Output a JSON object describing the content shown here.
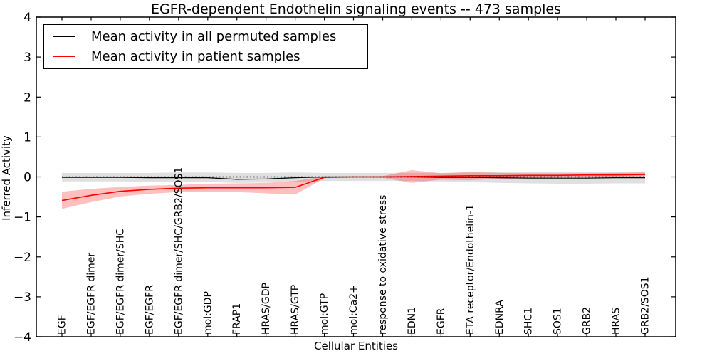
{
  "figure": {
    "title": "EGFR-dependent Endothelin signaling events -- 473 samples"
  },
  "chart_data": {
    "type": "line",
    "title": "EGFR-dependent Endothelin signaling events -- 473 samples",
    "xlabel": "Cellular Entities",
    "ylabel": "Inferred Activity",
    "ylim": [
      -4,
      4
    ],
    "yticks": [
      -4,
      -3,
      -2,
      -1,
      0,
      1,
      2,
      3,
      4
    ],
    "grid": false,
    "legend_position": "upper left",
    "categories": [
      "EGF",
      "EGF/EGFR dimer",
      "EGF/EGFR dimer/SHC",
      "EGF/EGFR",
      "EGF/EGFR dimer/SHC/GRB2/SOS1",
      "mol:GDP",
      "FRAP1",
      "HRAS/GDP",
      "HRAS/GTP",
      "mol:GTP",
      "mol:Ca2+",
      "response to oxidative stress",
      "EDN1",
      "EGFR",
      "ETA receptor/Endothelin-1",
      "EDNRA",
      "SHC1",
      "SOS1",
      "GRB2",
      "HRAS",
      "GRB2/SOS1"
    ],
    "series": [
      {
        "name": "Mean activity in all permuted samples",
        "color": "#000000",
        "band_opacity": 0.12,
        "values": [
          -0.01,
          -0.01,
          -0.01,
          -0.02,
          -0.02,
          -0.02,
          -0.06,
          -0.05,
          -0.02,
          0.0,
          0.0,
          0.0,
          0.0,
          -0.01,
          -0.01,
          -0.02,
          -0.03,
          -0.03,
          -0.03,
          -0.02,
          -0.02
        ],
        "band_upper": [
          0.1,
          0.1,
          0.1,
          0.1,
          0.11,
          0.11,
          0.1,
          0.1,
          0.11,
          0.1,
          0.1,
          0.1,
          0.1,
          0.1,
          0.11,
          0.12,
          0.12,
          0.12,
          0.13,
          0.13,
          0.13
        ],
        "band_lower": [
          -0.11,
          -0.11,
          -0.11,
          -0.12,
          -0.12,
          -0.13,
          -0.15,
          -0.14,
          -0.12,
          -0.1,
          -0.1,
          -0.1,
          -0.1,
          -0.11,
          -0.13,
          -0.15,
          -0.16,
          -0.17,
          -0.17,
          -0.16,
          -0.16
        ]
      },
      {
        "name": "Mean activity in patient samples",
        "color": "#ff0000",
        "band_opacity": 0.25,
        "values": [
          -0.59,
          -0.46,
          -0.36,
          -0.31,
          -0.28,
          -0.27,
          -0.27,
          -0.27,
          -0.26,
          -0.01,
          0.0,
          0.0,
          0.01,
          0.02,
          0.03,
          0.03,
          0.04,
          0.04,
          0.05,
          0.05,
          0.06
        ],
        "band_upper": [
          -0.37,
          -0.3,
          -0.25,
          -0.22,
          -0.2,
          -0.17,
          -0.16,
          -0.15,
          -0.1,
          0.01,
          0.01,
          0.02,
          0.17,
          0.09,
          0.12,
          0.1,
          0.09,
          0.09,
          0.09,
          0.1,
          0.11
        ],
        "band_lower": [
          -0.8,
          -0.63,
          -0.49,
          -0.42,
          -0.38,
          -0.38,
          -0.38,
          -0.41,
          -0.44,
          -0.03,
          -0.01,
          -0.02,
          -0.15,
          -0.07,
          -0.08,
          -0.05,
          -0.03,
          -0.01,
          0.0,
          0.01,
          0.02
        ]
      }
    ],
    "reference_line": {
      "y": 0,
      "style": "dotted",
      "color": "#000000"
    }
  }
}
